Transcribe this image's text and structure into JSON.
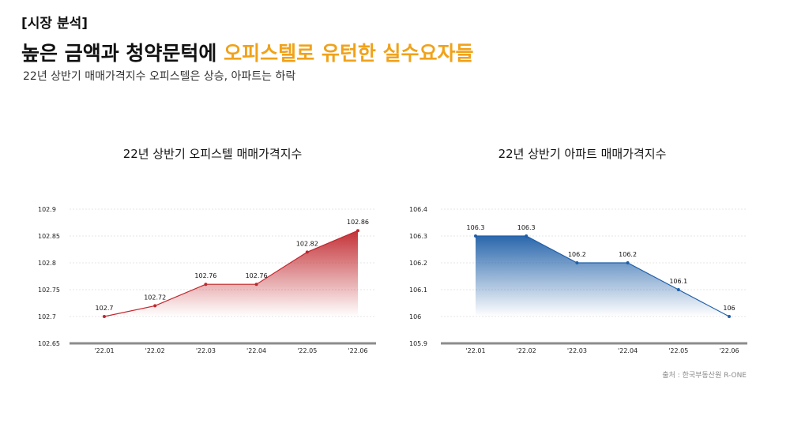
{
  "header": {
    "tag": "[시장 분석]",
    "headline_main": "높은 금액과 청약문턱에 ",
    "headline_accent": "오피스텔로 유턴한 실수요자들",
    "subline": "22년 상반기 매매가격지수 오피스텔은 상승, 아파트는 하락"
  },
  "colors": {
    "accent": "#f0a21a",
    "officetel": "#c0272d",
    "apartment": "#1f5fa8"
  },
  "source": "출처 : 한국부동산원 R-ONE",
  "chart_data": [
    {
      "type": "area",
      "title": "22년 상반기 오피스텔 매매가격지수",
      "categories": [
        "'22.01",
        "'22.02",
        "'22.03",
        "'22.04",
        "'22.05",
        "'22.06"
      ],
      "values": [
        102.7,
        102.72,
        102.76,
        102.76,
        102.82,
        102.86
      ],
      "value_labels": [
        "102.7",
        "102.72",
        "102.76",
        "102.76",
        "102.82",
        "102.86"
      ],
      "ylim": [
        102.65,
        102.9
      ],
      "yticks": [
        102.65,
        102.7,
        102.75,
        102.8,
        102.85,
        102.9
      ],
      "ytick_labels": [
        "102.65",
        "102.7",
        "102.75",
        "102.8",
        "102.85",
        "102.9"
      ],
      "grid": true,
      "color": "#c0272d"
    },
    {
      "type": "area",
      "title": "22년 상반기 아파트 매매가격지수",
      "categories": [
        "'22.01",
        "'22.02",
        "'22.03",
        "'22.04",
        "'22.05",
        "'22.06"
      ],
      "values": [
        106.3,
        106.3,
        106.2,
        106.2,
        106.1,
        106
      ],
      "value_labels": [
        "106.3",
        "106.3",
        "106.2",
        "106.2",
        "106.1",
        "106"
      ],
      "ylim": [
        105.9,
        106.4
      ],
      "yticks": [
        105.9,
        106,
        106.1,
        106.2,
        106.3,
        106.4
      ],
      "ytick_labels": [
        "105.9",
        "106",
        "106.1",
        "106.2",
        "106.3",
        "106.4"
      ],
      "grid": true,
      "color": "#1f5fa8"
    }
  ]
}
